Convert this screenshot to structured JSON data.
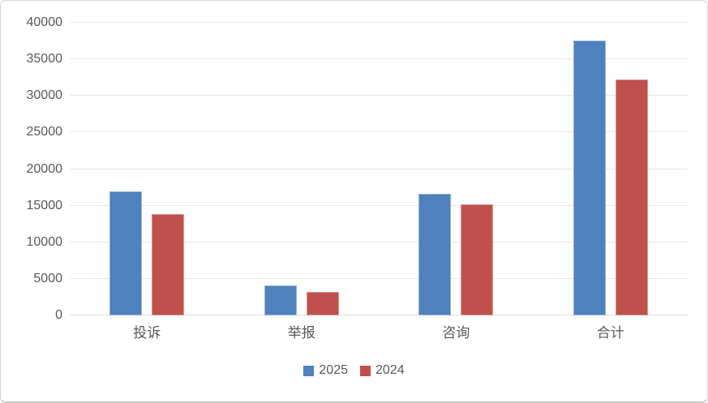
{
  "chart_data": {
    "type": "bar",
    "categories": [
      "投诉",
      "举报",
      "咨询",
      "合计"
    ],
    "series": [
      {
        "name": "2025",
        "color": "#4F81BD",
        "values": [
          16900,
          4100,
          16600,
          37600
        ]
      },
      {
        "name": "2024",
        "color": "#C0504D",
        "values": [
          13900,
          3200,
          15200,
          32300
        ]
      }
    ],
    "y_ticks": [
      0,
      5000,
      10000,
      15000,
      20000,
      25000,
      30000,
      35000,
      40000
    ],
    "ylim": [
      0,
      40000
    ],
    "grid": true,
    "legend_position": "bottom"
  },
  "colors": {
    "gridline": "#E7E7E7",
    "axis_text": "#595959",
    "background": "#FFFFFF",
    "frame_border": "#D6D6D6"
  },
  "legend": {
    "entry1": "2025",
    "entry2": "2024"
  }
}
